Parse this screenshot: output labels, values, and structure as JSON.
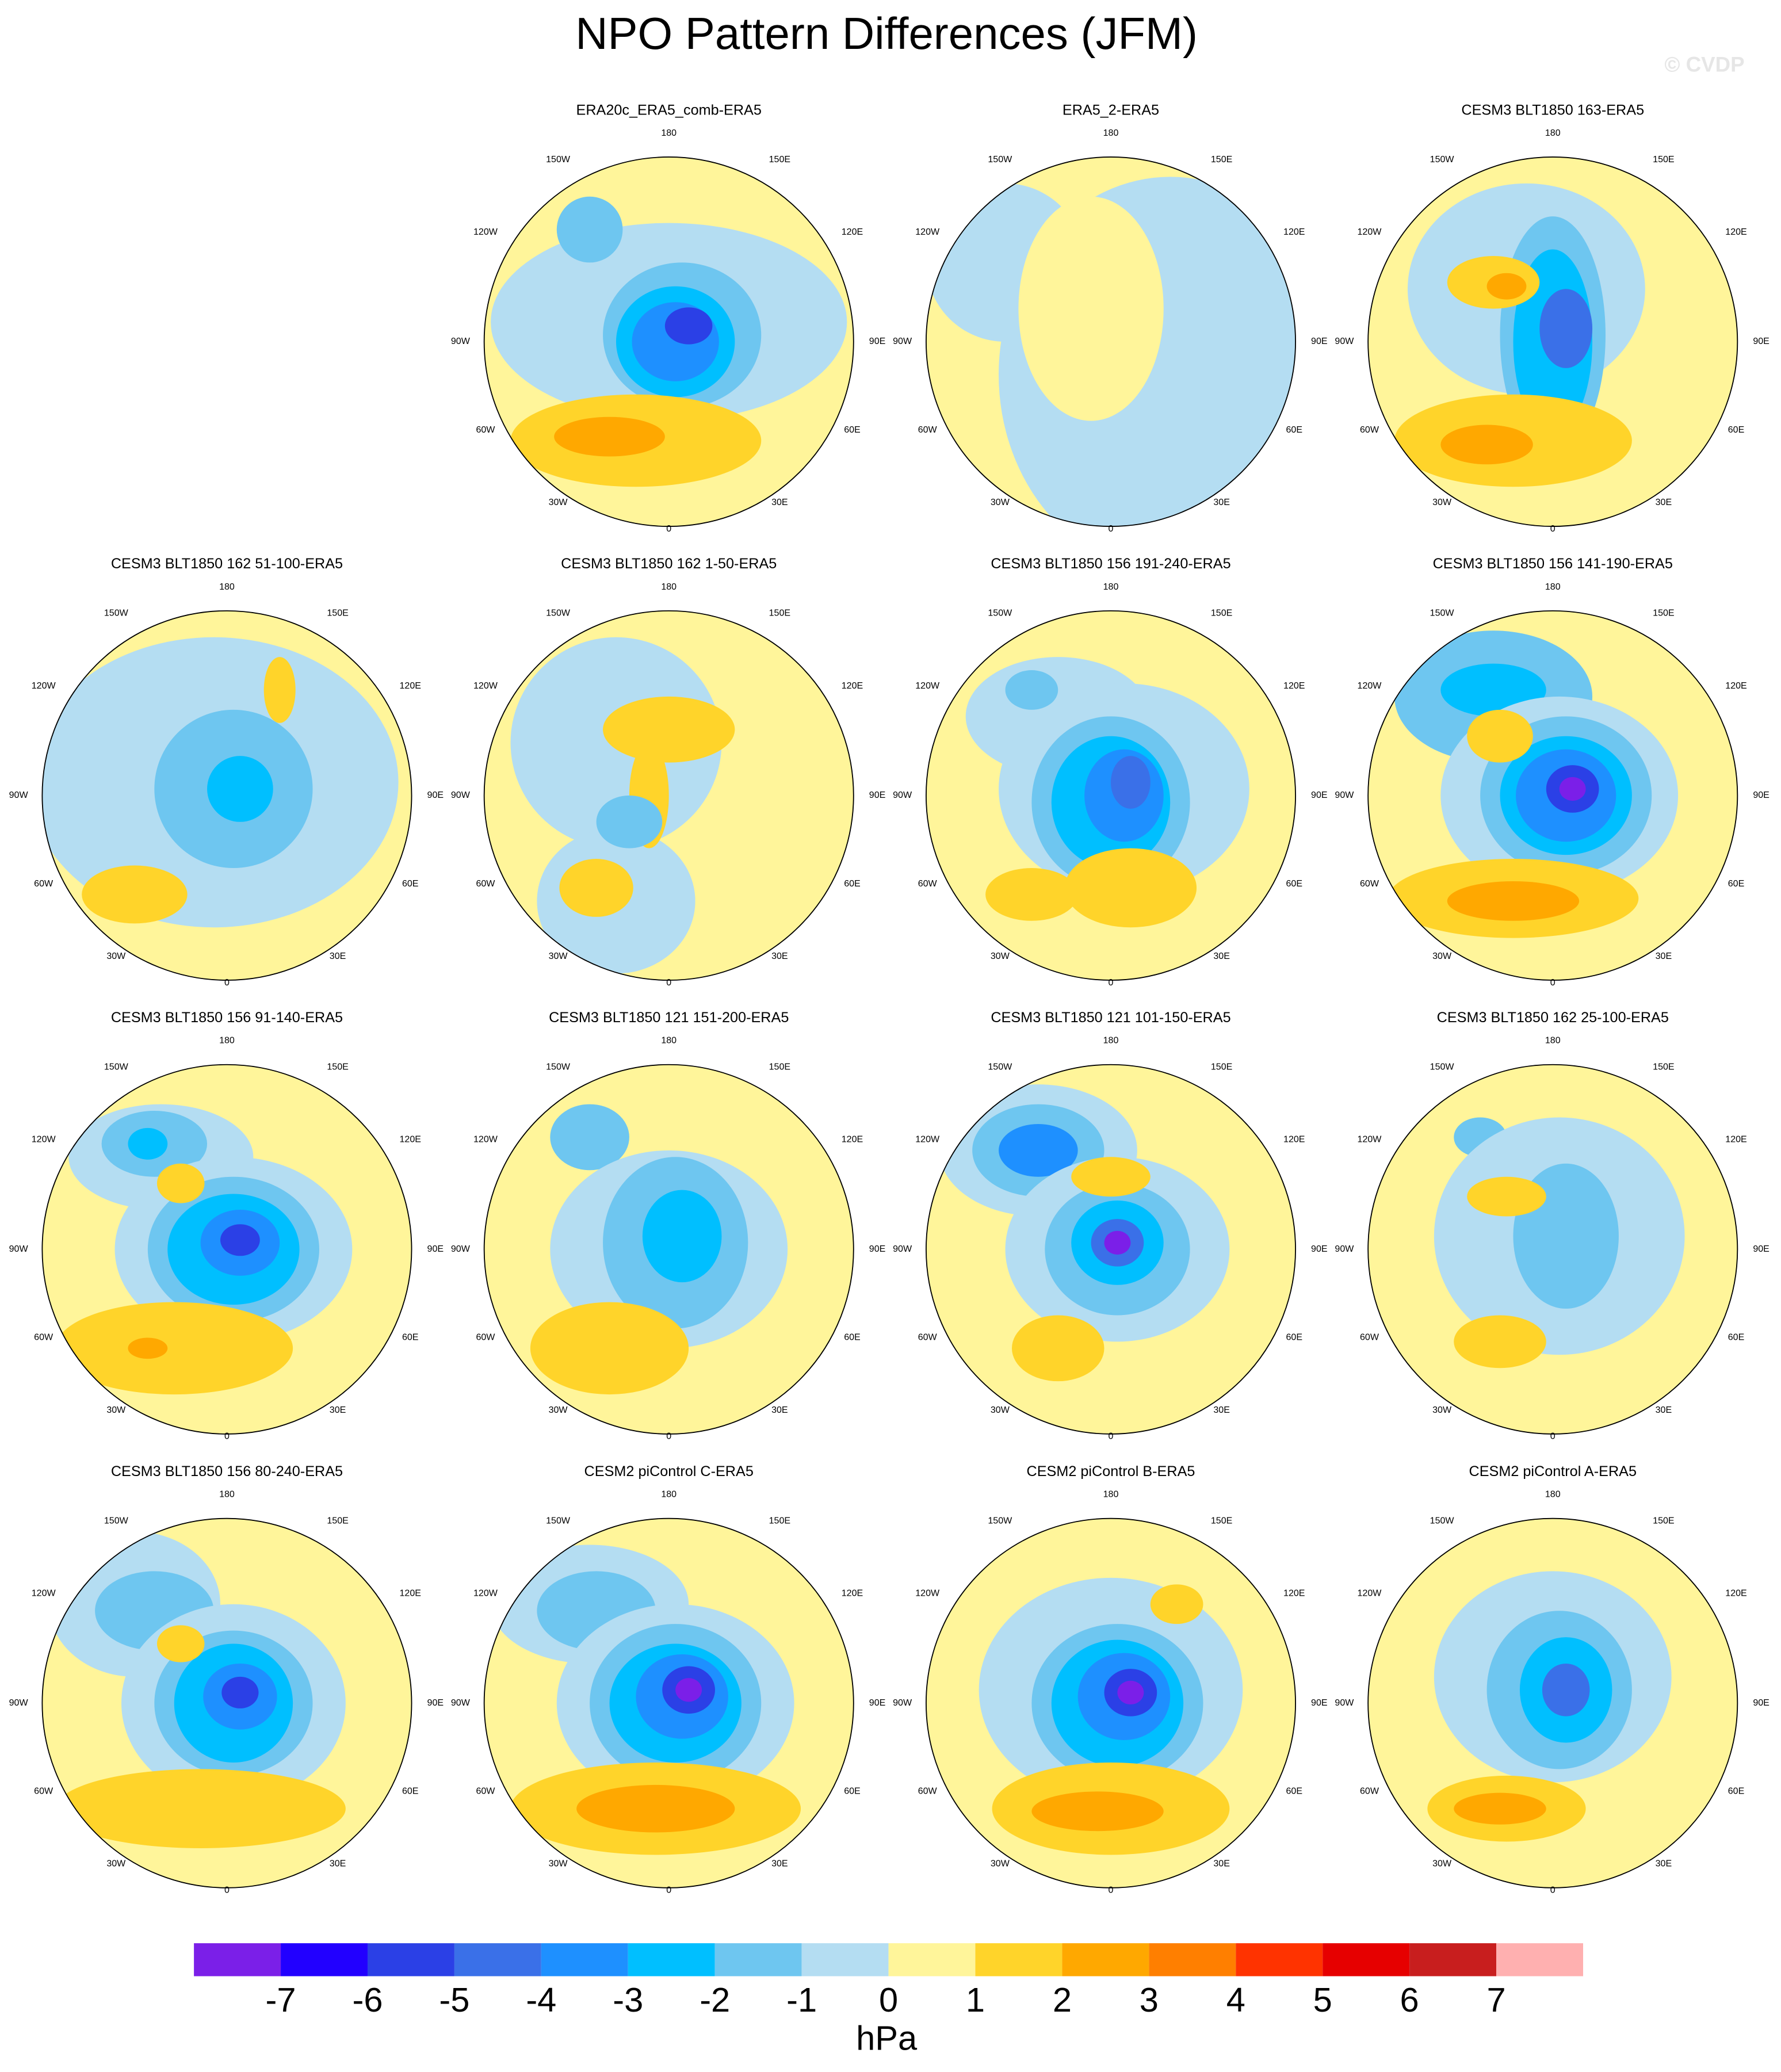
{
  "header": {
    "title": "NPO Pattern Differences (JFM)",
    "watermark": "© CVDP"
  },
  "panels": [
    {
      "title": "ERA20c_ERA5_comb-ERA5"
    },
    {
      "title": "ERA5_2-ERA5"
    },
    {
      "title": "CESM3 BLT1850 163-ERA5"
    },
    {
      "title": "CESM3 BLT1850 162 51-100-ERA5"
    },
    {
      "title": "CESM3 BLT1850 162 1-50-ERA5"
    },
    {
      "title": "CESM3 BLT1850 156 191-240-ERA5"
    },
    {
      "title": "CESM3 BLT1850 156 141-190-ERA5"
    },
    {
      "title": "CESM3 BLT1850 156 91-140-ERA5"
    },
    {
      "title": "CESM3 BLT1850 121 151-200-ERA5"
    },
    {
      "title": "CESM3 BLT1850 121 101-150-ERA5"
    },
    {
      "title": "CESM3 BLT1850 162 25-100-ERA5"
    },
    {
      "title": "CESM3 BLT1850 156 80-240-ERA5"
    },
    {
      "title": "CESM2 piControl C-ERA5"
    },
    {
      "title": "CESM2 piControl B-ERA5"
    },
    {
      "title": "CESM2 piControl A-ERA5"
    }
  ],
  "longitude_labels": [
    "180",
    "150E",
    "120E",
    "90E",
    "60E",
    "30E",
    "0",
    "30W",
    "60W",
    "90W",
    "120W",
    "150W"
  ],
  "colorbar": {
    "colors": [
      "#7b1fe8",
      "#2200ff",
      "#2b40e6",
      "#3a70e8",
      "#1e90ff",
      "#00bfff",
      "#6ec6f0",
      "#b4ddf2",
      "#fff59a",
      "#ffd42a",
      "#ffa800",
      "#ff7f00",
      "#ff3300",
      "#e60000",
      "#c81e1e",
      "#ffb0b0"
    ],
    "ticks": [
      -7,
      -6,
      -5,
      -4,
      -3,
      -2,
      -1,
      0,
      1,
      2,
      3,
      4,
      5,
      6,
      7
    ],
    "unit": "hPa"
  }
}
